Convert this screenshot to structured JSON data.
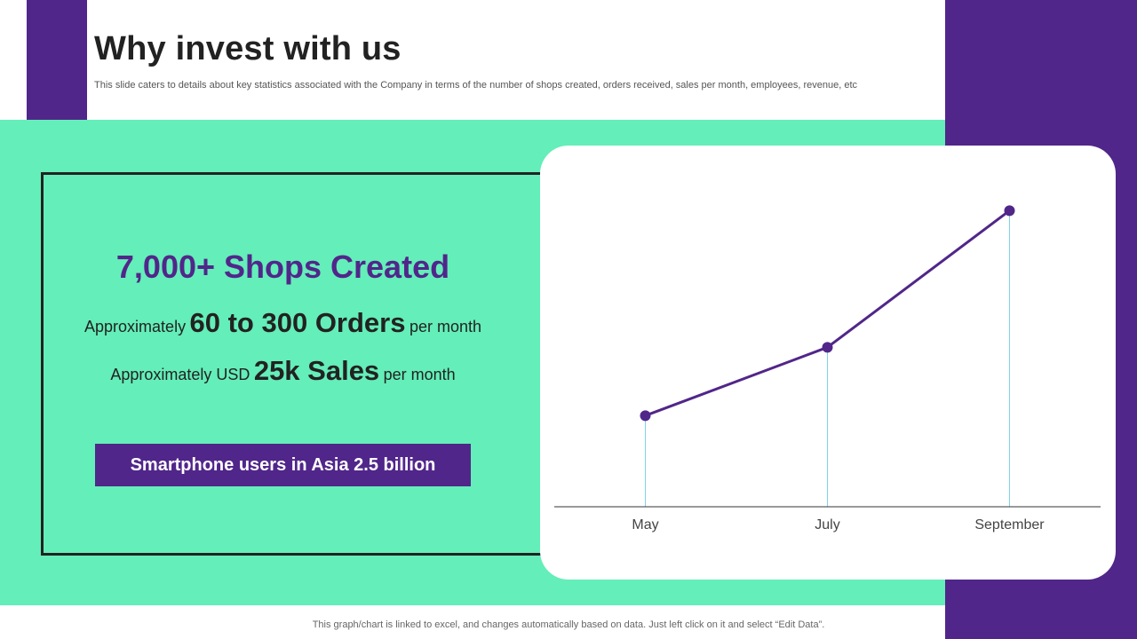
{
  "header": {
    "title": "Why invest with us",
    "subtitle": "This slide caters to details about key statistics associated with the Company in terms of the number of shops created, orders received, sales per month, employees, revenue, etc"
  },
  "stats": {
    "shops": "7,000+ Shops Created",
    "orders_prefix": "Approximately",
    "orders_value": "60 to 300 Orders",
    "orders_suffix": "per month",
    "sales_prefix": "Approximately USD",
    "sales_value": "25k Sales",
    "sales_suffix": "per month",
    "cta_label": "Smartphone users in Asia 2.5 billion"
  },
  "chart_data": {
    "type": "line",
    "categories": [
      "May",
      "July",
      "September"
    ],
    "series": [
      {
        "values": [
          20,
          35,
          65
        ]
      }
    ],
    "title": "",
    "xlabel": "",
    "ylabel": "",
    "ylim": [
      0,
      75
    ],
    "grid": false,
    "colors": {
      "line": "#51268a",
      "marker": "#51268a",
      "drop_line": "#7fd3e8",
      "axis": "#333333",
      "label": "#444444"
    }
  },
  "footer": {
    "note": "This graph/chart is linked to excel, and changes automatically based on data. Just left click on it and select “Edit Data”."
  },
  "colors": {
    "accent_purple": "#51268a",
    "band_green": "#64eeb9"
  }
}
